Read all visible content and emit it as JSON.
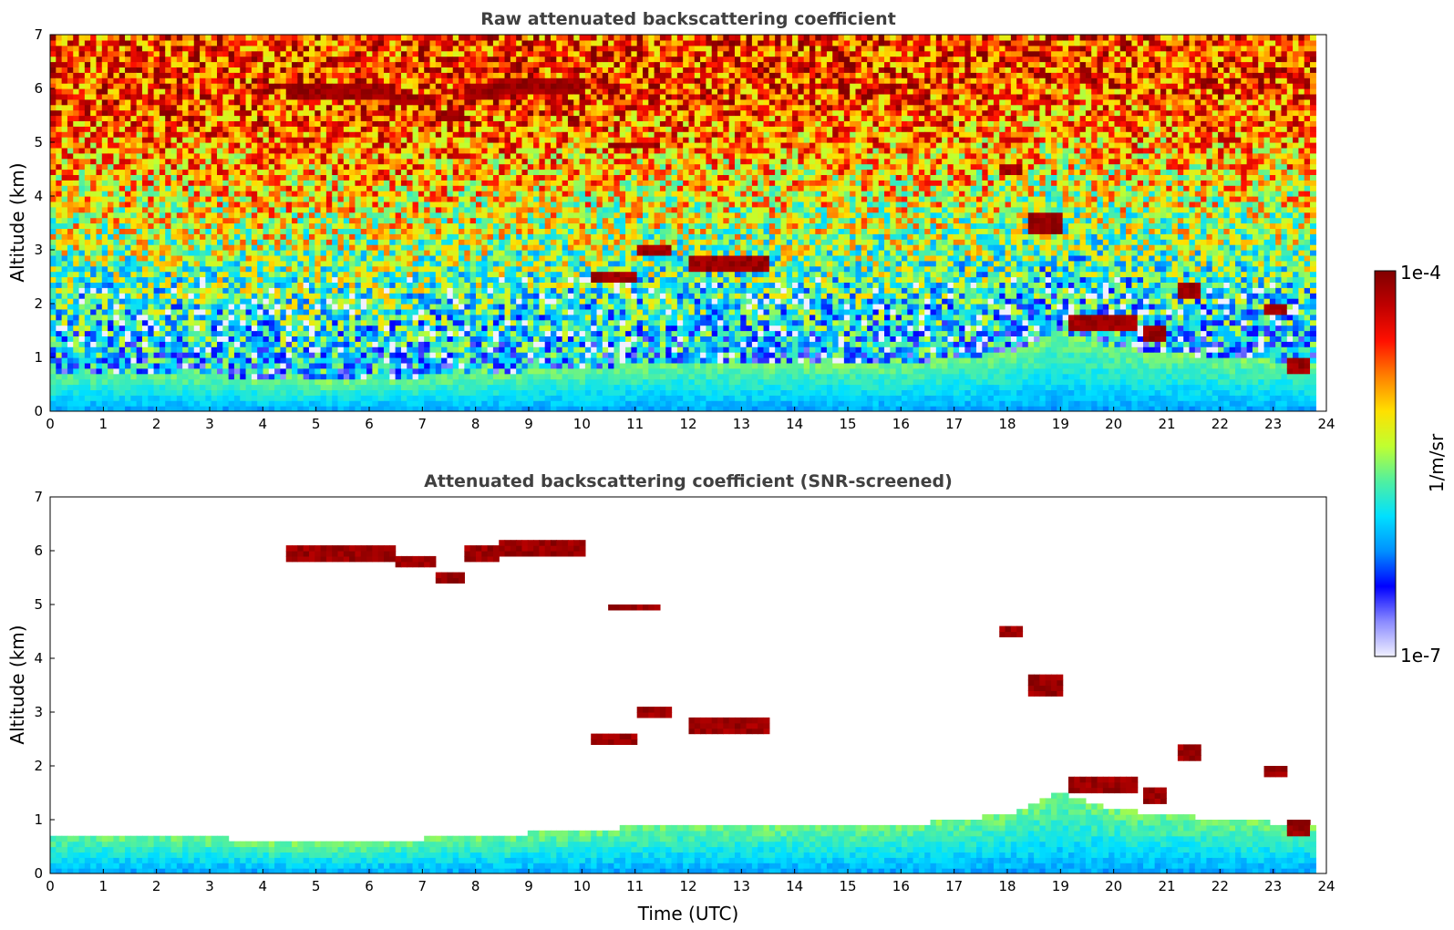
{
  "chart_data": [
    {
      "type": "heatmap",
      "title": "Raw attenuated backscattering coefficient",
      "xlabel": "",
      "ylabel": "Altitude (km)",
      "xlim": [
        0,
        24
      ],
      "ylim": [
        0,
        7
      ],
      "x_ticks": [
        "0",
        "1",
        "2",
        "3",
        "4",
        "5",
        "6",
        "7",
        "8",
        "9",
        "10",
        "11",
        "12",
        "13",
        "14",
        "15",
        "16",
        "17",
        "18",
        "19",
        "20",
        "21",
        "22",
        "23",
        "24"
      ],
      "y_ticks": [
        "0",
        "1",
        "2",
        "3",
        "4",
        "5",
        "6",
        "7"
      ],
      "data_time_extent_utc": [
        0,
        23.8
      ],
      "mode": "raw",
      "cloud_layers": [
        {
          "x": [
            4.4,
            6.5
          ],
          "y": 6.0,
          "thickness": 0.15
        },
        {
          "x": [
            6.5,
            7.2
          ],
          "y": 5.8,
          "thickness": 0.12
        },
        {
          "x": [
            7.2,
            7.8
          ],
          "y": 5.5,
          "thickness": 0.12
        },
        {
          "x": [
            7.8,
            8.4
          ],
          "y": 5.9,
          "thickness": 0.15
        },
        {
          "x": [
            8.4,
            10.1
          ],
          "y": 6.1,
          "thickness": 0.15
        },
        {
          "x": [
            10.5,
            11.5
          ],
          "y": 4.95,
          "thickness": 0.08
        },
        {
          "x": [
            10.2,
            11.0
          ],
          "y": 2.5,
          "thickness": 0.12
        },
        {
          "x": [
            11.0,
            11.7
          ],
          "y": 3.0,
          "thickness": 0.1
        },
        {
          "x": [
            12.0,
            13.5
          ],
          "y": 2.75,
          "thickness": 0.18
        },
        {
          "x": [
            17.8,
            18.3
          ],
          "y": 4.5,
          "thickness": 0.15
        },
        {
          "x": [
            18.4,
            19.0
          ],
          "y": 3.5,
          "thickness": 0.2
        },
        {
          "x": [
            19.2,
            20.5
          ],
          "y": 1.65,
          "thickness": 0.18
        },
        {
          "x": [
            20.6,
            21.0
          ],
          "y": 1.5,
          "thickness": 0.15
        },
        {
          "x": [
            21.2,
            21.6
          ],
          "y": 2.2,
          "thickness": 0.15
        },
        {
          "x": [
            22.8,
            23.3
          ],
          "y": 1.9,
          "thickness": 0.12
        },
        {
          "x": [
            23.3,
            23.7
          ],
          "y": 0.9,
          "thickness": 0.15
        }
      ]
    },
    {
      "type": "heatmap",
      "title": "Attenuated backscattering coefficient (SNR-screened)",
      "xlabel": "Time (UTC)",
      "ylabel": "Altitude (km)",
      "xlim": [
        0,
        24
      ],
      "ylim": [
        0,
        7
      ],
      "x_ticks": [
        "0",
        "1",
        "2",
        "3",
        "4",
        "5",
        "6",
        "7",
        "8",
        "9",
        "10",
        "11",
        "12",
        "13",
        "14",
        "15",
        "16",
        "17",
        "18",
        "19",
        "20",
        "21",
        "22",
        "23",
        "24"
      ],
      "y_ticks": [
        "0",
        "1",
        "2",
        "3",
        "4",
        "5",
        "6",
        "7"
      ],
      "data_time_extent_utc": [
        0,
        23.8
      ],
      "mode": "screened",
      "boundary_layer_top_km": {
        "x": [
          0,
          2,
          4,
          5,
          8,
          10,
          12,
          14,
          16,
          18,
          19,
          20,
          22,
          23.8
        ],
        "y": [
          0.75,
          0.75,
          0.6,
          0.55,
          0.7,
          0.8,
          0.95,
          0.9,
          0.9,
          1.1,
          1.5,
          1.2,
          1.0,
          0.9
        ]
      }
    }
  ],
  "colorbar": {
    "label": "1/m/sr",
    "min_label": "1e-7",
    "max_label": "1e-4",
    "scale": "log",
    "range": [
      1e-07,
      0.0001
    ],
    "colors": [
      "#f0f0ff",
      "#8a8aff",
      "#0000ff",
      "#0090ff",
      "#00e0ff",
      "#50f0a0",
      "#c0ff30",
      "#ffe000",
      "#ff8000",
      "#ff1000",
      "#c00000",
      "#800000"
    ]
  }
}
